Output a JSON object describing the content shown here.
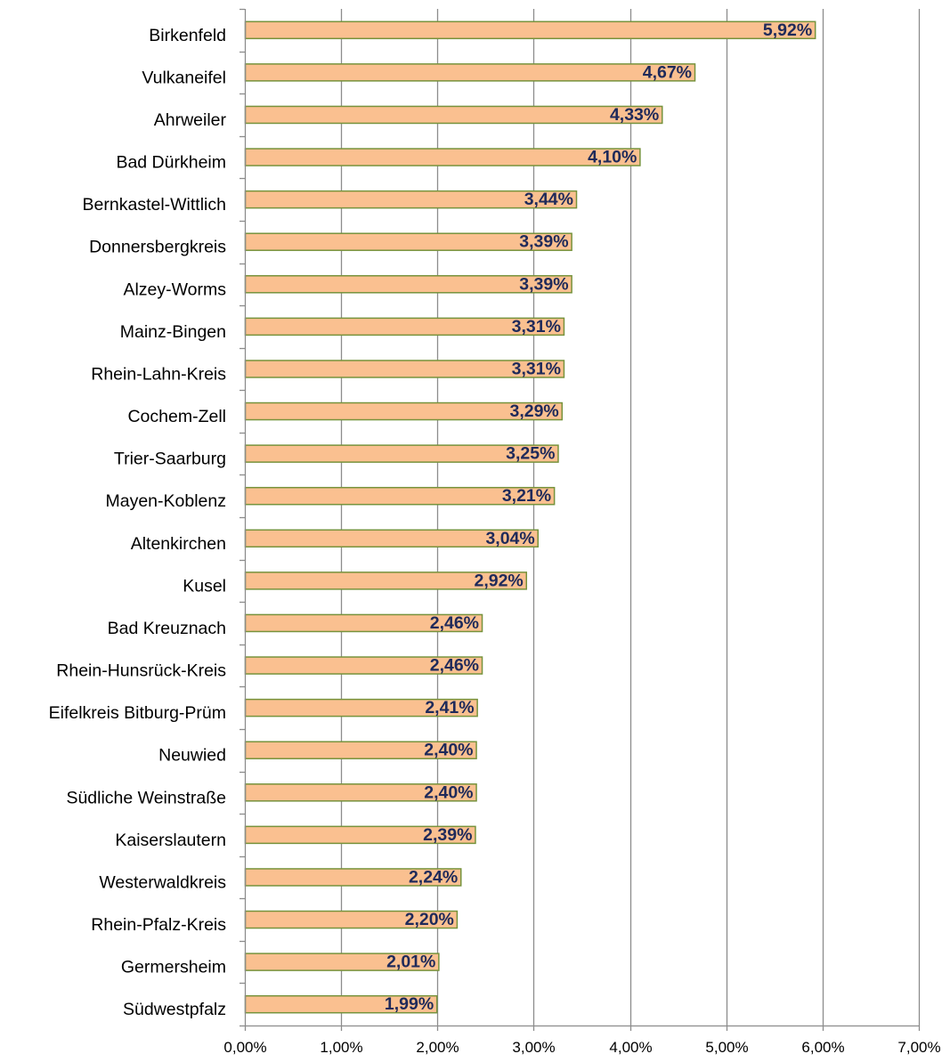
{
  "chart_data": {
    "type": "bar",
    "orientation": "horizontal",
    "categories": [
      "Birkenfeld",
      "Vulkaneifel",
      "Ahrweiler",
      "Bad Dürkheim",
      "Bernkastel-Wittlich",
      "Donnersbergkreis",
      "Alzey-Worms",
      "Mainz-Bingen",
      "Rhein-Lahn-Kreis",
      "Cochem-Zell",
      "Trier-Saarburg",
      "Mayen-Koblenz",
      "Altenkirchen",
      "Kusel",
      "Bad Kreuznach",
      "Rhein-Hunsrück-Kreis",
      "Eifelkreis Bitburg-Prüm",
      "Neuwied",
      "Südliche Weinstraße",
      "Kaiserslautern",
      "Westerwaldkreis",
      "Rhein-Pfalz-Kreis",
      "Germersheim",
      "Südwestpfalz"
    ],
    "values": [
      5.92,
      4.67,
      4.33,
      4.1,
      3.44,
      3.39,
      3.39,
      3.31,
      3.31,
      3.29,
      3.25,
      3.21,
      3.04,
      2.92,
      2.46,
      2.46,
      2.41,
      2.4,
      2.4,
      2.39,
      2.24,
      2.2,
      2.01,
      1.99
    ],
    "data_labels": [
      "5,92%",
      "4,67%",
      "4,33%",
      "4,10%",
      "3,44%",
      "3,39%",
      "3,39%",
      "3,31%",
      "3,31%",
      "3,29%",
      "3,25%",
      "3,21%",
      "3,04%",
      "2,92%",
      "2,46%",
      "2,46%",
      "2,41%",
      "2,40%",
      "2,40%",
      "2,39%",
      "2,24%",
      "2,20%",
      "2,01%",
      "1,99%"
    ],
    "x_ticks": [
      0,
      1,
      2,
      3,
      4,
      5,
      6,
      7
    ],
    "x_tick_labels": [
      "0,00%",
      "1,00%",
      "2,00%",
      "3,00%",
      "4,00%",
      "5,00%",
      "6,00%",
      "7,00%"
    ],
    "xlim": [
      0,
      7
    ],
    "x_unit": "%",
    "title": "",
    "xlabel": "",
    "ylabel": "",
    "grid": "vertical major gridlines",
    "legend": "none",
    "colors": {
      "bar_fill": "#FAC090",
      "bar_stroke": "#77933C",
      "gridline": "#8C8C8C",
      "axis": "#8C8C8C",
      "data_label": "#1F2A5A",
      "text": "#000000"
    }
  }
}
